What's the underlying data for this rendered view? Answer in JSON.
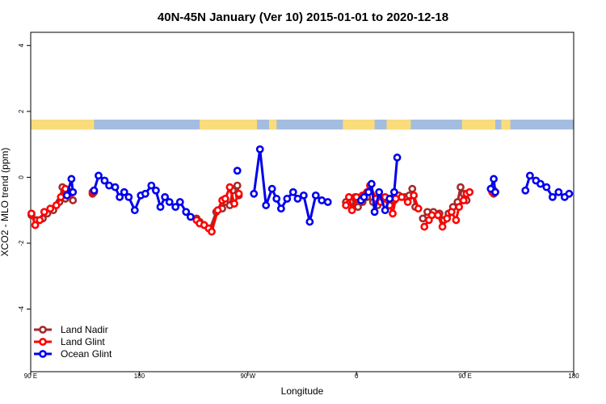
{
  "chart_data": {
    "type": "line",
    "title": "40N-45N January (Ver 10)   2015-01-01 to 2020-12-18",
    "xlabel": "Longitude",
    "ylabel": "XCO2 - MLO trend (ppm)",
    "xlim": [
      90,
      450
    ],
    "ylim": [
      -5.9,
      4.4
    ],
    "x_ticks": [
      {
        "value": 90,
        "label": "90 E"
      },
      {
        "value": 162,
        "label": "180"
      },
      {
        "value": 234,
        "label": "90 W"
      },
      {
        "value": 306,
        "label": "0"
      },
      {
        "value": 378,
        "label": "90 E"
      },
      {
        "value": 450,
        "label": "180"
      }
    ],
    "y_ticks": [
      {
        "value": 4,
        "label": "4"
      },
      {
        "value": 2,
        "label": "2"
      },
      {
        "value": 0,
        "label": "0"
      },
      {
        "value": -2,
        "label": "-2"
      },
      {
        "value": -4,
        "label": "-4"
      }
    ],
    "grid": false,
    "legend_position": "bottom-left",
    "land_ocean_strip": {
      "y_range": [
        1.45,
        1.75
      ],
      "ocean_color": "#a3bde0",
      "land_color": "#fbdc7a",
      "land_segments": [
        [
          90,
          132
        ],
        [
          202,
          240
        ],
        [
          248,
          253
        ],
        [
          297,
          318
        ],
        [
          326,
          342
        ],
        [
          376,
          398
        ],
        [
          402,
          408
        ]
      ]
    },
    "series": [
      {
        "name": "Land Nadir",
        "color": "#a52a2a",
        "segments": [
          [
            [
              90.5,
              -1.15
            ],
            [
              94,
              -1.3
            ],
            [
              98,
              -1.25
            ],
            [
              101,
              -1.1
            ],
            [
              105,
              -1.0
            ],
            [
              109,
              -0.75
            ],
            [
              111,
              -0.3
            ],
            [
              113,
              -0.65
            ],
            [
              116,
              -0.45
            ],
            [
              118,
              -0.7
            ]
          ],
          [
            [
              131,
              -0.5
            ],
            [
              132,
              -0.45
            ]
          ],
          [
            [
              200,
              -1.25
            ],
            [
              202,
              -1.35
            ],
            [
              205,
              -1.45
            ],
            [
              209,
              -1.55
            ],
            [
              213,
              -1.05
            ],
            [
              217,
              -0.95
            ],
            [
              219,
              -0.75
            ],
            [
              222,
              -0.85
            ],
            [
              224,
              -0.4
            ],
            [
              227,
              -0.25
            ],
            [
              228,
              -0.55
            ]
          ],
          [
            [
              299,
              -0.75
            ],
            [
              302,
              -0.75
            ],
            [
              305,
              -0.6
            ],
            [
              307,
              -0.9
            ],
            [
              310,
              -0.75
            ],
            [
              313,
              -0.6
            ],
            [
              317,
              -0.75
            ],
            [
              320,
              -0.85
            ],
            [
              323,
              -0.65
            ],
            [
              327,
              -0.7
            ],
            [
              331,
              -0.7
            ],
            [
              334,
              -0.55
            ],
            [
              338,
              -0.6
            ],
            [
              341,
              -0.55
            ],
            [
              343,
              -0.35
            ],
            [
              345,
              -0.9
            ]
          ],
          [
            [
              350,
              -1.25
            ],
            [
              353,
              -1.05
            ],
            [
              357,
              -1.05
            ],
            [
              361,
              -1.1
            ],
            [
              364,
              -1.3
            ],
            [
              367,
              -1.1
            ],
            [
              370,
              -0.9
            ],
            [
              373,
              -0.75
            ],
            [
              375,
              -0.3
            ],
            [
              377,
              -0.5
            ],
            [
              379,
              -0.7
            ]
          ],
          [
            [
              397,
              -0.5
            ],
            [
              398,
              -0.45
            ]
          ]
        ]
      },
      {
        "name": "Land Glint",
        "color": "#ff0000",
        "segments": [
          [
            [
              90.5,
              -1.1
            ],
            [
              93,
              -1.45
            ],
            [
              96,
              -1.3
            ],
            [
              99,
              -1.05
            ],
            [
              103,
              -0.95
            ],
            [
              107,
              -0.85
            ],
            [
              110,
              -0.6
            ],
            [
              113,
              -0.35
            ],
            [
              116,
              -0.5
            ]
          ],
          [
            [
              131,
              -0.45
            ],
            [
              132,
              -0.4
            ]
          ],
          [
            [
              200,
              -1.3
            ],
            [
              202,
              -1.4
            ],
            [
              205,
              -1.45
            ],
            [
              208,
              -1.55
            ],
            [
              210,
              -1.65
            ],
            [
              214,
              -1.0
            ],
            [
              217,
              -0.7
            ],
            [
              219,
              -0.65
            ],
            [
              222,
              -0.3
            ],
            [
              225,
              -0.8
            ],
            [
              228,
              -0.5
            ]
          ],
          [
            [
              299,
              -0.85
            ],
            [
              301,
              -0.6
            ],
            [
              303,
              -1.0
            ],
            [
              306,
              -0.6
            ],
            [
              310,
              -0.55
            ],
            [
              313,
              -0.45
            ],
            [
              315,
              -0.25
            ],
            [
              319,
              -0.65
            ],
            [
              322,
              -0.75
            ],
            [
              325,
              -0.6
            ],
            [
              328,
              -0.85
            ],
            [
              330,
              -1.1
            ],
            [
              332,
              -0.65
            ],
            [
              336,
              -0.6
            ],
            [
              340,
              -0.75
            ],
            [
              344,
              -0.55
            ],
            [
              347,
              -0.95
            ]
          ],
          [
            [
              351,
              -1.5
            ],
            [
              354,
              -1.3
            ],
            [
              356,
              -1.15
            ],
            [
              360,
              -1.15
            ],
            [
              363,
              -1.5
            ],
            [
              366,
              -1.25
            ],
            [
              369,
              -1.05
            ],
            [
              372,
              -1.3
            ],
            [
              374,
              -0.9
            ],
            [
              377,
              -0.7
            ],
            [
              379,
              -0.5
            ],
            [
              381,
              -0.45
            ]
          ],
          [
            [
              396,
              -0.45
            ],
            [
              397,
              -0.4
            ]
          ]
        ]
      },
      {
        "name": "Ocean Glint",
        "color": "#0000ee",
        "segments": [
          [
            [
              114,
              -0.55
            ],
            [
              117,
              -0.05
            ],
            [
              118,
              -0.45
            ]
          ],
          [
            [
              132,
              -0.4
            ],
            [
              135,
              0.05
            ],
            [
              139,
              -0.1
            ],
            [
              142,
              -0.25
            ],
            [
              146,
              -0.3
            ],
            [
              149,
              -0.6
            ],
            [
              152,
              -0.45
            ],
            [
              155,
              -0.6
            ],
            [
              159,
              -1.0
            ],
            [
              163,
              -0.55
            ],
            [
              166,
              -0.5
            ],
            [
              170,
              -0.25
            ],
            [
              173,
              -0.4
            ],
            [
              176,
              -0.9
            ],
            [
              179,
              -0.6
            ],
            [
              182,
              -0.75
            ],
            [
              186,
              -0.9
            ],
            [
              189,
              -0.75
            ],
            [
              193,
              -1.05
            ],
            [
              196,
              -1.2
            ]
          ],
          [
            [
              227,
              0.2
            ]
          ],
          [
            [
              238,
              -0.5
            ],
            [
              242,
              0.85
            ],
            [
              246,
              -0.85
            ],
            [
              250,
              -0.35
            ],
            [
              253,
              -0.65
            ],
            [
              256,
              -0.95
            ],
            [
              260,
              -0.65
            ],
            [
              264,
              -0.45
            ],
            [
              267,
              -0.65
            ],
            [
              271,
              -0.55
            ],
            [
              275,
              -1.35
            ],
            [
              279,
              -0.55
            ],
            [
              283,
              -0.7
            ],
            [
              287,
              -0.75
            ]
          ],
          [
            [
              309,
              -0.7
            ],
            [
              311,
              -0.6
            ],
            [
              314,
              -0.45
            ],
            [
              316,
              -0.2
            ],
            [
              318,
              -1.05
            ],
            [
              321,
              -0.45
            ],
            [
              325,
              -1.0
            ],
            [
              328,
              -0.65
            ],
            [
              331,
              -0.45
            ],
            [
              333,
              0.6
            ]
          ],
          [
            [
              395,
              -0.35
            ],
            [
              397,
              -0.05
            ],
            [
              398,
              -0.45
            ]
          ],
          [
            [
              418,
              -0.4
            ],
            [
              421,
              0.05
            ],
            [
              425,
              -0.1
            ],
            [
              428,
              -0.2
            ],
            [
              432,
              -0.3
            ],
            [
              436,
              -0.6
            ],
            [
              440,
              -0.45
            ],
            [
              444,
              -0.6
            ],
            [
              447,
              -0.5
            ]
          ]
        ]
      }
    ]
  }
}
